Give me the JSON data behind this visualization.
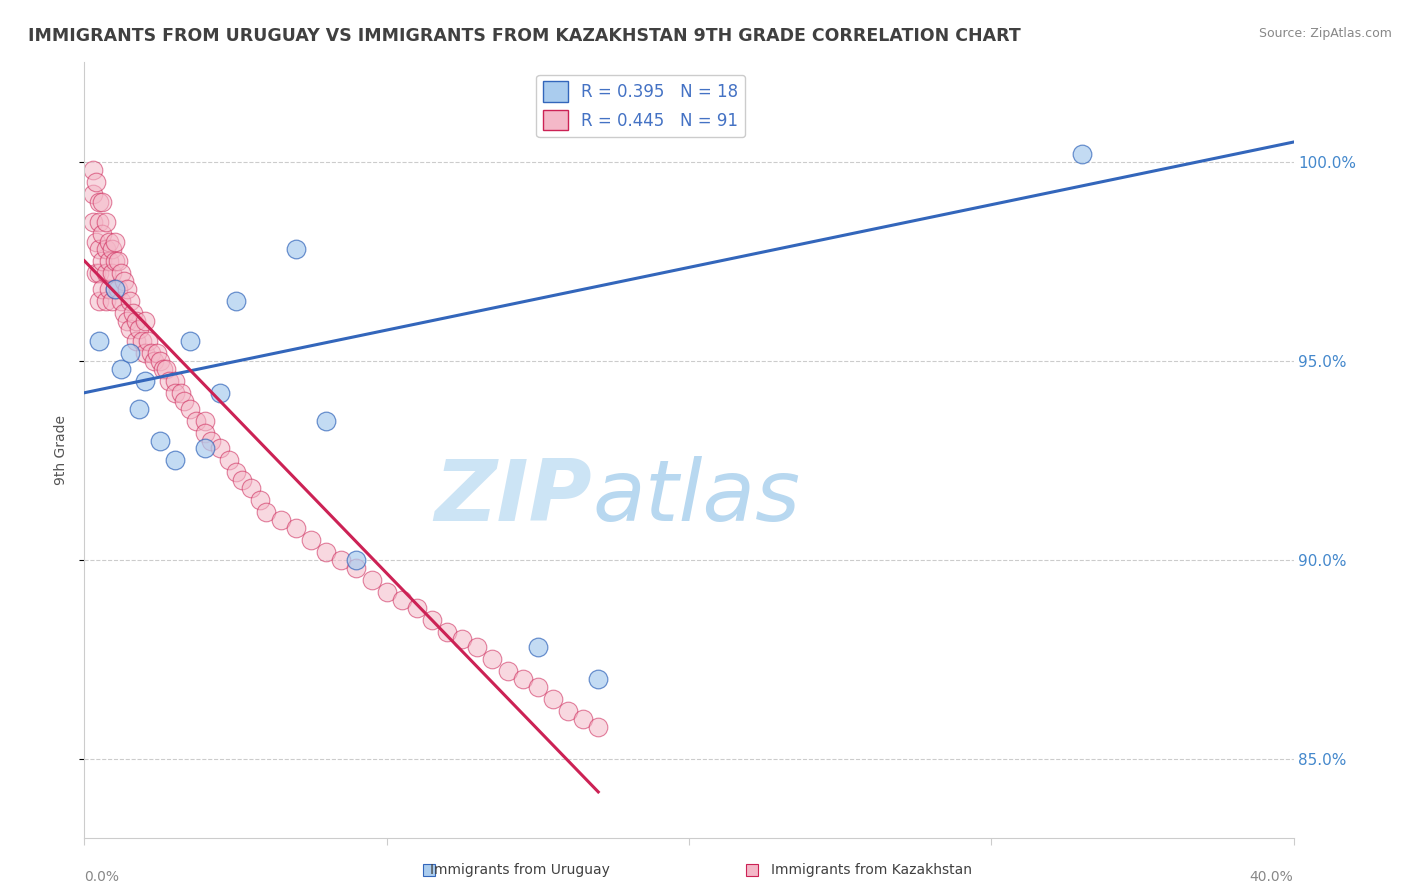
{
  "title": "IMMIGRANTS FROM URUGUAY VS IMMIGRANTS FROM KAZAKHSTAN 9TH GRADE CORRELATION CHART",
  "source": "Source: ZipAtlas.com",
  "ylabel": "9th Grade",
  "yticks": [
    85.0,
    90.0,
    95.0,
    100.0
  ],
  "ytick_labels": [
    "85.0%",
    "90.0%",
    "95.0%",
    "100.0%"
  ],
  "legend_uruguay": "R = 0.395   N = 18",
  "legend_kazakhstan": "R = 0.445   N = 91",
  "uruguay_color": "#aaccee",
  "kazakhstan_color": "#f4b8c8",
  "trendline_uruguay_color": "#3366bb",
  "trendline_kazakhstan_color": "#cc2255",
  "watermark_zip": "ZIP",
  "watermark_atlas": "atlas",
  "watermark_color": "#cce4f5",
  "background_color": "#ffffff",
  "grid_color": "#cccccc",
  "uruguay_scatter_x": [
    0.5,
    1.0,
    1.2,
    1.5,
    1.8,
    2.0,
    2.5,
    3.0,
    3.5,
    4.0,
    4.5,
    5.0,
    7.0,
    8.0,
    9.0,
    15.0,
    17.0,
    33.0
  ],
  "uruguay_scatter_y": [
    95.5,
    96.8,
    94.8,
    95.2,
    93.8,
    94.5,
    93.0,
    92.5,
    95.5,
    92.8,
    94.2,
    96.5,
    97.8,
    93.5,
    90.0,
    87.8,
    87.0,
    100.2
  ],
  "kazakhstan_scatter_x": [
    0.3,
    0.3,
    0.3,
    0.4,
    0.4,
    0.4,
    0.5,
    0.5,
    0.5,
    0.5,
    0.5,
    0.6,
    0.6,
    0.6,
    0.6,
    0.7,
    0.7,
    0.7,
    0.7,
    0.8,
    0.8,
    0.8,
    0.9,
    0.9,
    0.9,
    1.0,
    1.0,
    1.0,
    1.1,
    1.1,
    1.2,
    1.2,
    1.3,
    1.3,
    1.4,
    1.4,
    1.5,
    1.5,
    1.6,
    1.7,
    1.7,
    1.8,
    1.9,
    2.0,
    2.0,
    2.1,
    2.2,
    2.3,
    2.4,
    2.5,
    2.6,
    2.7,
    2.8,
    3.0,
    3.0,
    3.2,
    3.3,
    3.5,
    3.7,
    4.0,
    4.0,
    4.2,
    4.5,
    4.8,
    5.0,
    5.2,
    5.5,
    5.8,
    6.0,
    6.5,
    7.0,
    7.5,
    8.0,
    8.5,
    9.0,
    9.5,
    10.0,
    10.5,
    11.0,
    11.5,
    12.0,
    12.5,
    13.0,
    13.5,
    14.0,
    14.5,
    15.0,
    15.5,
    16.0,
    16.5,
    17.0
  ],
  "kazakhstan_scatter_y": [
    99.8,
    99.2,
    98.5,
    99.5,
    98.0,
    97.2,
    99.0,
    98.5,
    97.8,
    97.2,
    96.5,
    99.0,
    98.2,
    97.5,
    96.8,
    98.5,
    97.8,
    97.2,
    96.5,
    98.0,
    97.5,
    96.8,
    97.8,
    97.2,
    96.5,
    98.0,
    97.5,
    96.8,
    97.5,
    96.8,
    97.2,
    96.5,
    97.0,
    96.2,
    96.8,
    96.0,
    96.5,
    95.8,
    96.2,
    96.0,
    95.5,
    95.8,
    95.5,
    96.0,
    95.2,
    95.5,
    95.2,
    95.0,
    95.2,
    95.0,
    94.8,
    94.8,
    94.5,
    94.5,
    94.2,
    94.2,
    94.0,
    93.8,
    93.5,
    93.5,
    93.2,
    93.0,
    92.8,
    92.5,
    92.2,
    92.0,
    91.8,
    91.5,
    91.2,
    91.0,
    90.8,
    90.5,
    90.2,
    90.0,
    89.8,
    89.5,
    89.2,
    89.0,
    88.8,
    88.5,
    88.2,
    88.0,
    87.8,
    87.5,
    87.2,
    87.0,
    86.8,
    86.5,
    86.2,
    86.0,
    85.8
  ],
  "xlim": [
    0.0,
    40.0
  ],
  "ylim": [
    83.0,
    102.5
  ],
  "uru_trendline": [
    0.0,
    40.0,
    94.2,
    100.5
  ],
  "kaz_trendline_x_end": 17.0
}
